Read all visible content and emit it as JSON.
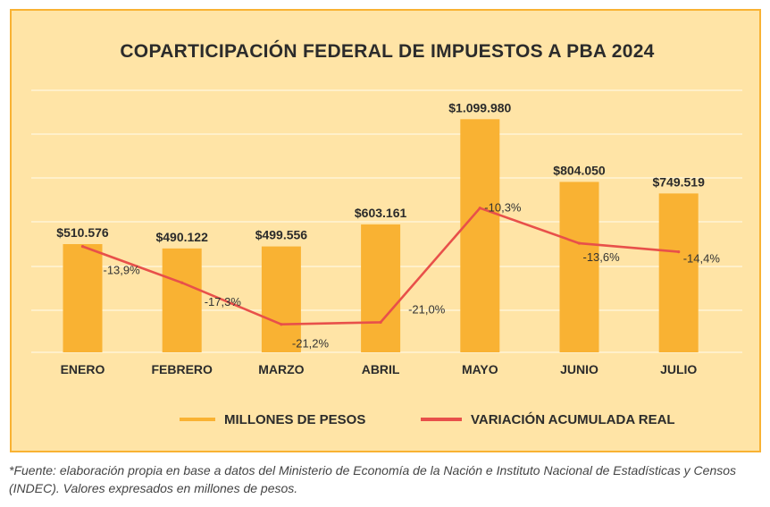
{
  "chart_data": {
    "type": "bar",
    "title": "COPARTICIPACIÓN FEDERAL DE IMPUESTOS A PBA 2024",
    "categories": [
      "ENERO",
      "FEBRERO",
      "MARZO",
      "ABRIL",
      "MAYO",
      "JUNIO",
      "JULIO"
    ],
    "series": [
      {
        "name": "MILLONES DE PESOS",
        "kind": "bar",
        "color": "#f9b233",
        "values": [
          510576,
          490122,
          499556,
          603161,
          1099980,
          804050,
          749519
        ],
        "labels": [
          "$510.576",
          "$490.122",
          "$499.556",
          "$603.161",
          "$1.099.980",
          "$804.050",
          "$749.519"
        ]
      },
      {
        "name": "VARIACIÓN ACUMULADA REAL",
        "kind": "line",
        "color": "#e8504a",
        "values": [
          -13.9,
          -17.3,
          -21.2,
          -21.0,
          -10.3,
          -13.6,
          -14.4
        ],
        "labels": [
          "-13,9%",
          "-17,3%",
          "-21,2%",
          "-21,0%",
          "-10,3%",
          "-13,6%",
          "-14,4%"
        ]
      }
    ],
    "grid": true,
    "legend_position": "bottom"
  },
  "footnote": "*Fuente: elaboración propia en base a datos del Ministerio de Economía de la Nación e Instituto Nacional de Estadísticas y Censos (INDEC). Valores expresados en millones de pesos.",
  "colors": {
    "background": "#ffe4a6",
    "border": "#f9b233",
    "bar": "#f9b233",
    "line": "#e8504a",
    "gridline": "#fff3d6"
  }
}
